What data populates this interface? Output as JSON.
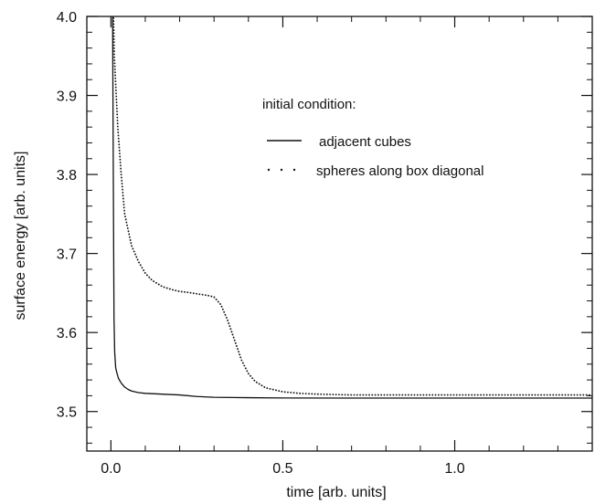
{
  "chart_data": {
    "type": "line",
    "title": "",
    "xlabel": "time [arb. units]",
    "ylabel": "surface energy [arb. units]",
    "xlim": [
      -0.07,
      1.4
    ],
    "ylim": [
      3.45,
      4.0
    ],
    "xticks": [
      0.0,
      0.5,
      1.0
    ],
    "xtick_labels": [
      "0.0",
      "0.5",
      "1.0"
    ],
    "yticks": [
      3.5,
      3.6,
      3.7,
      3.8,
      3.9,
      4.0
    ],
    "ytick_labels": [
      "3.5",
      "3.6",
      "3.7",
      "3.8",
      "3.9",
      "4.0"
    ],
    "x_minor_step": 0.1,
    "y_minor_step": 0.02,
    "grid": false,
    "legend_title": "initial condition:",
    "legend_placement": "upper-right",
    "series": [
      {
        "name": "adjacent cubes",
        "style": "solid",
        "color": "#111111",
        "x": [
          0.005,
          0.007,
          0.009,
          0.011,
          0.014,
          0.018,
          0.022,
          0.03,
          0.04,
          0.05,
          0.06,
          0.08,
          0.1,
          0.15,
          0.2,
          0.25,
          0.3,
          0.4,
          0.5,
          0.7,
          1.0,
          1.4
        ],
        "y": [
          4.0,
          3.8,
          3.62,
          3.575,
          3.555,
          3.548,
          3.542,
          3.536,
          3.531,
          3.528,
          3.526,
          3.524,
          3.523,
          3.522,
          3.521,
          3.519,
          3.518,
          3.5175,
          3.5172,
          3.517,
          3.517,
          3.517
        ]
      },
      {
        "name": "spheres along box diagonal",
        "style": "dotted",
        "color": "#111111",
        "x": [
          0.0,
          0.005,
          0.01,
          0.02,
          0.03,
          0.04,
          0.05,
          0.06,
          0.08,
          0.1,
          0.12,
          0.15,
          0.18,
          0.2,
          0.22,
          0.25,
          0.28,
          0.3,
          0.32,
          0.34,
          0.36,
          0.38,
          0.4,
          0.42,
          0.45,
          0.5,
          0.55,
          0.6,
          0.7,
          0.8,
          1.0,
          1.2,
          1.4
        ],
        "y": [
          4.2,
          4.05,
          3.95,
          3.86,
          3.8,
          3.75,
          3.73,
          3.71,
          3.69,
          3.675,
          3.666,
          3.658,
          3.654,
          3.652,
          3.651,
          3.649,
          3.647,
          3.645,
          3.635,
          3.615,
          3.59,
          3.565,
          3.548,
          3.538,
          3.53,
          3.525,
          3.523,
          3.522,
          3.521,
          3.521,
          3.521,
          3.521,
          3.521
        ]
      }
    ]
  }
}
